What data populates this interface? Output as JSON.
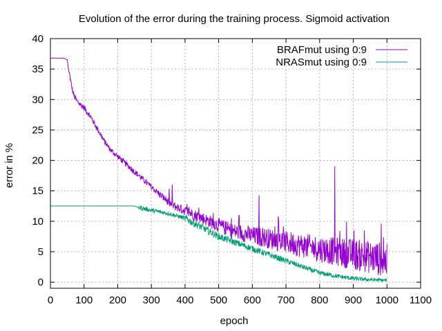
{
  "chart_data": {
    "type": "line",
    "title": "Evolution of the error during the training process. Sigmoid activation",
    "xlabel": "epoch",
    "ylabel": "error in %",
    "xlim": [
      0,
      1100
    ],
    "ylim": [
      -1,
      40
    ],
    "xticks": [
      "0",
      "100",
      "200",
      "300",
      "400",
      "500",
      "600",
      "700",
      "800",
      "900",
      "1000",
      "1100"
    ],
    "yticks": [
      "0",
      "5",
      "10",
      "15",
      "20",
      "25",
      "30",
      "35",
      "40"
    ],
    "grid": true,
    "legend_position": "top-right",
    "series": [
      {
        "name": "BRAFmut using 0:9",
        "color": "#9400d3",
        "x": [
          0,
          20,
          40,
          50,
          55,
          60,
          65,
          70,
          80,
          100,
          120,
          140,
          160,
          180,
          200,
          220,
          240,
          260,
          280,
          300,
          320,
          340,
          360,
          380,
          400,
          420,
          440,
          460,
          480,
          500,
          520,
          540,
          560,
          580,
          600,
          620,
          640,
          660,
          680,
          700,
          720,
          740,
          760,
          780,
          800,
          820,
          840,
          860,
          880,
          900,
          920,
          940,
          960,
          980,
          1000
        ],
        "y": [
          36.8,
          36.8,
          36.8,
          36.5,
          34.5,
          33.0,
          31.5,
          30.5,
          29.5,
          28.5,
          27.0,
          25.0,
          23.0,
          21.5,
          20.5,
          19.5,
          18.5,
          17.5,
          16.5,
          15.5,
          14.5,
          13.5,
          12.5,
          12.0,
          11.5,
          11.0,
          10.5,
          10.0,
          9.5,
          9.0,
          8.5,
          8.0,
          7.8,
          7.5,
          7.2,
          7.0,
          6.8,
          6.5,
          6.3,
          6.0,
          5.8,
          5.5,
          5.3,
          5.0,
          4.8,
          4.6,
          4.4,
          4.2,
          4.0,
          3.8,
          3.6,
          3.4,
          3.2,
          3.0,
          2.5
        ],
        "peaks": [
          [
            362,
            16.0
          ],
          [
            620,
            12.8
          ],
          [
            845,
            16.0
          ],
          [
            860,
            9.5
          ],
          [
            990,
            7.0
          ]
        ]
      },
      {
        "name": "NRASmut using 0:9",
        "color": "#009e73",
        "x": [
          0,
          100,
          200,
          250,
          260,
          300,
          350,
          400,
          450,
          500,
          550,
          600,
          650,
          700,
          750,
          800,
          850,
          900,
          950,
          1000
        ],
        "y": [
          12.5,
          12.5,
          12.5,
          12.5,
          12.3,
          11.8,
          11.3,
          10.5,
          9.0,
          7.5,
          6.5,
          5.5,
          4.5,
          3.5,
          2.5,
          1.5,
          1.0,
          0.6,
          0.4,
          0.3
        ]
      }
    ]
  }
}
